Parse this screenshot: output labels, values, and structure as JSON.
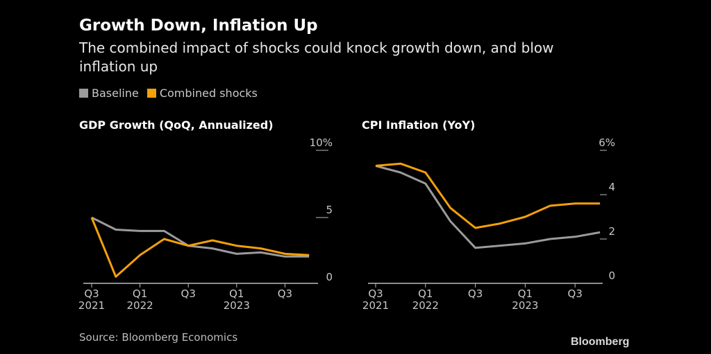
{
  "header": {
    "title": "Growth Down, Inflation Up",
    "subtitle": "The combined impact of shocks could knock growth down, and blow inflation up"
  },
  "legend": [
    {
      "label": "Baseline",
      "color": "#9b9b9b"
    },
    {
      "label": "Combined shocks",
      "color": "#f5a00a"
    }
  ],
  "footer": {
    "source": "Source: Bloomberg Economics",
    "brand": "Bloomberg"
  },
  "chart_data": [
    {
      "type": "line",
      "title": "GDP Growth (QoQ, Annualized)",
      "x": [
        "Q3 2021",
        "Q4 2021",
        "Q1 2022",
        "Q2 2022",
        "Q3 2022",
        "Q4 2022",
        "Q1 2023",
        "Q2 2023",
        "Q3 2023",
        "Q4 2023"
      ],
      "x_ticks": [
        {
          "label": "Q3",
          "sub": "2021",
          "index": 0
        },
        {
          "label": "Q1",
          "sub": "2022",
          "index": 2
        },
        {
          "label": "Q3",
          "sub": "",
          "index": 4
        },
        {
          "label": "Q1",
          "sub": "2023",
          "index": 6
        },
        {
          "label": "Q3",
          "sub": "",
          "index": 8
        }
      ],
      "y_ticks": [
        {
          "value": 10,
          "label": "10%"
        },
        {
          "value": 5,
          "label": "5"
        },
        {
          "value": 0,
          "label": "0"
        }
      ],
      "ylim": [
        0,
        10
      ],
      "ylabel": "",
      "xlabel": "",
      "grid": false,
      "series": [
        {
          "name": "Baseline",
          "color": "#9b9b9b",
          "values": [
            5.0,
            4.1,
            4.0,
            4.0,
            2.9,
            2.7,
            2.3,
            2.4,
            2.1,
            2.1
          ]
        },
        {
          "name": "Combined shocks",
          "color": "#f5a00a",
          "values": [
            5.0,
            0.6,
            2.2,
            3.4,
            2.9,
            3.3,
            2.9,
            2.7,
            2.3,
            2.2
          ]
        }
      ]
    },
    {
      "type": "line",
      "title": "CPI Inflation (YoY)",
      "x": [
        "Q3 2021",
        "Q4 2021",
        "Q1 2022",
        "Q2 2022",
        "Q3 2022",
        "Q4 2022",
        "Q1 2023",
        "Q2 2023",
        "Q3 2023",
        "Q4 2023"
      ],
      "x_ticks": [
        {
          "label": "Q3",
          "sub": "2021",
          "index": 0
        },
        {
          "label": "Q1",
          "sub": "2022",
          "index": 2
        },
        {
          "label": "Q3",
          "sub": "",
          "index": 4
        },
        {
          "label": "Q1",
          "sub": "2023",
          "index": 6
        },
        {
          "label": "Q3",
          "sub": "",
          "index": 8
        }
      ],
      "y_ticks": [
        {
          "value": 6,
          "label": "6%"
        },
        {
          "value": 4,
          "label": "4"
        },
        {
          "value": 2,
          "label": "2"
        },
        {
          "value": 0,
          "label": "0"
        }
      ],
      "ylim": [
        0,
        6
      ],
      "ylabel": "",
      "xlabel": "",
      "grid": false,
      "series": [
        {
          "name": "Baseline",
          "color": "#9b9b9b",
          "values": [
            5.3,
            5.0,
            4.5,
            2.8,
            1.6,
            1.7,
            1.8,
            2.0,
            2.1,
            2.3
          ]
        },
        {
          "name": "Combined shocks",
          "color": "#f5a00a",
          "values": [
            5.3,
            5.4,
            5.0,
            3.4,
            2.5,
            2.7,
            3.0,
            3.5,
            3.6,
            3.6
          ]
        }
      ]
    }
  ]
}
